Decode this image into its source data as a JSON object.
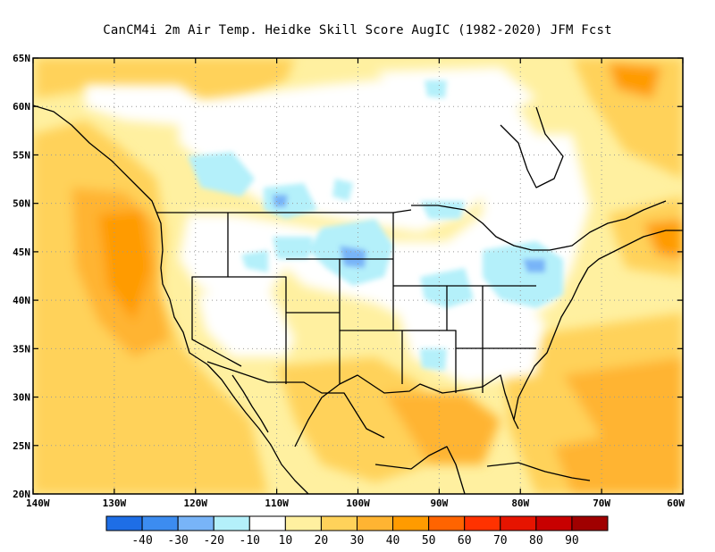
{
  "title": "CanCM4i  2m Air Temp. Heidke Skill Score AugIC (1982-2020) JFM Fcst",
  "map": {
    "lon_range": [
      -140,
      -60
    ],
    "lat_range": [
      20,
      65
    ],
    "lat_ticks": [
      {
        "value": 65,
        "label": "65N"
      },
      {
        "value": 60,
        "label": "60N"
      },
      {
        "value": 55,
        "label": "55N"
      },
      {
        "value": 50,
        "label": "50N"
      },
      {
        "value": 45,
        "label": "45N"
      },
      {
        "value": 40,
        "label": "40N"
      },
      {
        "value": 35,
        "label": "35N"
      },
      {
        "value": 30,
        "label": "30N"
      },
      {
        "value": 25,
        "label": "25N"
      },
      {
        "value": 20,
        "label": "20N"
      }
    ],
    "lon_ticks": [
      {
        "value": -140,
        "label": "140W"
      },
      {
        "value": -130,
        "label": "130W"
      },
      {
        "value": -120,
        "label": "120W"
      },
      {
        "value": -110,
        "label": "110W"
      },
      {
        "value": -100,
        "label": "100W"
      },
      {
        "value": -90,
        "label": "90W"
      },
      {
        "value": -80,
        "label": "80W"
      },
      {
        "value": -70,
        "label": "70W"
      },
      {
        "value": -60,
        "label": "60W"
      }
    ],
    "grid": "dotted"
  },
  "colorbar": {
    "colors": [
      "#1e6ee6",
      "#3c8cf0",
      "#78b4f8",
      "#b4f0fa",
      "#ffffff",
      "#fff0a0",
      "#ffd25a",
      "#ffb432",
      "#ff9b00",
      "#ff6400",
      "#ff3200",
      "#e61400",
      "#c80000",
      "#a00000"
    ],
    "labels": [
      "-40",
      "-30",
      "-20",
      "-10",
      "10",
      "20",
      "30",
      "40",
      "50",
      "60",
      "70",
      "80",
      "90"
    ]
  },
  "field_regions": [
    {
      "region": "Pacific coast / Pacific Northwest",
      "value": 50
    },
    {
      "region": "Eastern Pacific ocean",
      "value": 30
    },
    {
      "region": "Gulf of Mexico",
      "value": 40
    },
    {
      "region": "Mexico",
      "value": 30
    },
    {
      "region": "Western Atlantic",
      "value": 30
    },
    {
      "region": "Northern Great Plains",
      "value": -10
    },
    {
      "region": "Great Lakes / Ohio Valley",
      "value": -10
    },
    {
      "region": "Canadian Prairies",
      "value": -10
    },
    {
      "region": "Labrador / Nova Scotia",
      "value": 50
    },
    {
      "region": "Northern Quebec",
      "value": 20
    },
    {
      "region": "Yukon / Alaska panhandle",
      "value": 20
    }
  ]
}
